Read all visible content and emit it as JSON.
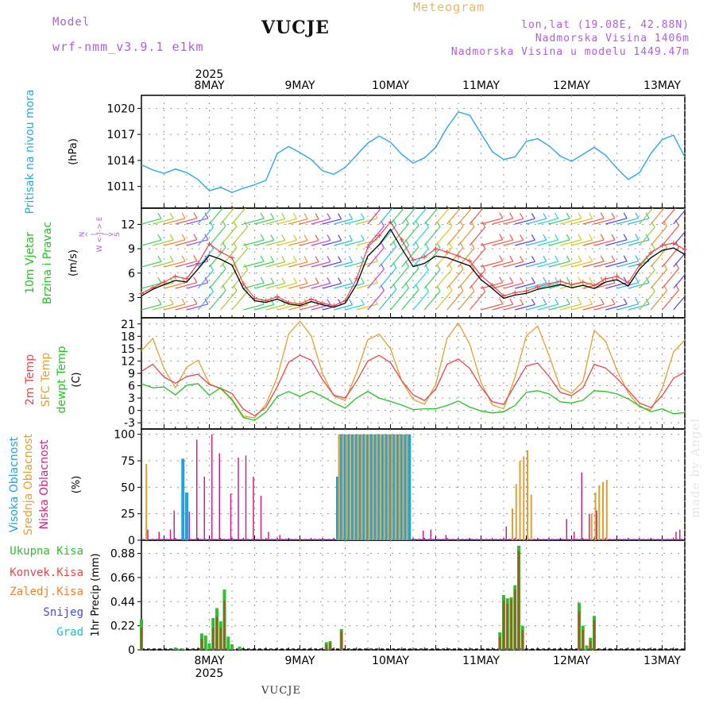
{
  "header": {
    "model_label": "Model",
    "model_name": "wrf-nmm_v3.9.1 e1km",
    "station": "VUCJE",
    "product": "Meteogram",
    "coords": "lon,lat (19.08E, 42.88N)",
    "altitude": "Nadmorska Visina 1406m",
    "model_altitude": "Nadmorska Visina u modelu 1449.47m",
    "footer_station": "VUCJE",
    "credit": "made by Angel"
  },
  "colors": {
    "pressure": "#29a8e0",
    "wind_speed": "#000000",
    "wind_gust": "#e8454a",
    "temp_2m": "#e8454a",
    "temp_sfc": "#e0a030",
    "dewpoint": "#22c322",
    "cloud_high": "#1fa3e0",
    "cloud_mid": "#e0a030",
    "cloud_low": "#d0208a",
    "precip_total": "#2fbe2f",
    "precip_conv": "#e8454a",
    "precip_frozen": "#f08030",
    "precip_snow": "#4848e0",
    "precip_hail": "#20c0c0"
  },
  "time_axis": {
    "year": "2025",
    "day_labels": [
      "8MAY",
      "9MAY",
      "10MAY",
      "11MAY",
      "12MAY",
      "13MAY"
    ],
    "start_hour": -6,
    "end_hour": 138,
    "hour_step": 3
  },
  "chart_data": [
    {
      "type": "line",
      "panel": "pressure",
      "ylabel_lines": [
        "Pritisak na nivou mora"
      ],
      "unit": "(hPa)",
      "yticks": [
        1011,
        1014,
        1017,
        1020
      ],
      "ylim": [
        1008.5,
        1021.5
      ],
      "grid": true,
      "x_hours": [
        -6,
        -3,
        0,
        3,
        6,
        9,
        12,
        15,
        18,
        21,
        24,
        27,
        30,
        33,
        36,
        39,
        42,
        45,
        48,
        51,
        54,
        57,
        60,
        63,
        66,
        69,
        72,
        75,
        78,
        81,
        84,
        87,
        90,
        93,
        96,
        99,
        102,
        105,
        108,
        111,
        114,
        117,
        120,
        123,
        126,
        129,
        132,
        135,
        138
      ],
      "series": [
        {
          "name": "",
          "values": [
            1013.5,
            1012.9,
            1012.5,
            1013.0,
            1012.6,
            1011.8,
            1010.5,
            1010.9,
            1010.3,
            1010.8,
            1011.2,
            1011.7,
            1014.8,
            1015.6,
            1014.9,
            1014.1,
            1012.8,
            1012.4,
            1013.2,
            1014.6,
            1016.0,
            1016.8,
            1016.1,
            1014.7,
            1013.7,
            1014.3,
            1015.5,
            1017.8,
            1019.6,
            1019.2,
            1017.1,
            1015.0,
            1014.1,
            1014.4,
            1016.2,
            1016.5,
            1015.7,
            1014.5,
            1013.9,
            1014.7,
            1015.5,
            1014.6,
            1013.1,
            1011.8,
            1012.6,
            1014.8,
            1016.4,
            1016.9,
            1014.4
          ]
        }
      ]
    },
    {
      "type": "line",
      "panel": "wind",
      "ylabel_lines": [
        "10m Vjetar",
        "Brzina i Pravac"
      ],
      "unit": "(m/s)",
      "compass_lines": [
        "N",
        "^",
        "|",
        "W <-|-> E",
        "|",
        "v",
        "S"
      ],
      "yticks": [
        3,
        6,
        9,
        12
      ],
      "ylim": [
        0.5,
        14
      ],
      "grid": true,
      "x_hours": [
        -6,
        -3,
        0,
        3,
        6,
        9,
        12,
        15,
        18,
        21,
        24,
        27,
        30,
        33,
        36,
        39,
        42,
        45,
        48,
        51,
        54,
        57,
        60,
        63,
        66,
        69,
        72,
        75,
        78,
        81,
        84,
        87,
        90,
        93,
        96,
        99,
        102,
        105,
        108,
        111,
        114,
        117,
        120,
        123,
        126,
        129,
        132,
        135,
        138
      ],
      "series": [
        {
          "name": "",
          "values": [
            3.2,
            4.0,
            4.6,
            5.1,
            4.9,
            6.5,
            8.2,
            7.7,
            7.0,
            4.1,
            2.6,
            2.4,
            2.8,
            2.2,
            2.0,
            2.5,
            2.1,
            1.8,
            2.3,
            4.6,
            8.1,
            9.5,
            11.4,
            9.0,
            6.8,
            7.2,
            8.1,
            7.9,
            7.4,
            6.9,
            5.2,
            4.1,
            2.9,
            3.3,
            3.5,
            4.0,
            4.3,
            4.6,
            4.2,
            4.5,
            4.1,
            4.9,
            5.2,
            4.4,
            6.5,
            7.9,
            8.8,
            9.1,
            8.3
          ]
        },
        {
          "name": "",
          "values": [
            3.5,
            4.2,
            4.9,
            5.6,
            5.3,
            7.2,
            9.6,
            8.6,
            7.9,
            4.7,
            2.9,
            2.6,
            3.1,
            2.4,
            2.2,
            2.8,
            2.3,
            2.0,
            2.6,
            5.3,
            9.2,
            10.6,
            12.3,
            10.1,
            7.6,
            8.0,
            9.0,
            8.6,
            8.1,
            7.5,
            5.7,
            4.5,
            3.2,
            3.6,
            3.8,
            4.3,
            4.7,
            5.0,
            4.6,
            4.9,
            4.5,
            5.3,
            5.6,
            4.8,
            7.0,
            8.5,
            9.4,
            9.7,
            8.9
          ]
        }
      ]
    },
    {
      "type": "line",
      "panel": "temperature",
      "ylabel_lines": [
        "2m Temp",
        "SFC Temp",
        "dewpt Temp"
      ],
      "unit": "(C)",
      "yticks": [
        -3,
        0,
        3,
        6,
        9,
        12,
        15,
        18,
        21
      ],
      "ylim": [
        -4.5,
        22.5
      ],
      "grid": true,
      "x_hours": [
        -6,
        -3,
        0,
        3,
        6,
        9,
        12,
        15,
        18,
        21,
        24,
        27,
        30,
        33,
        36,
        39,
        42,
        45,
        48,
        51,
        54,
        57,
        60,
        63,
        66,
        69,
        72,
        75,
        78,
        81,
        84,
        87,
        90,
        93,
        96,
        99,
        102,
        105,
        108,
        111,
        114,
        117,
        120,
        123,
        126,
        129,
        132,
        135,
        138
      ],
      "series": [
        {
          "name": "",
          "values": [
            9.5,
            11.2,
            8.1,
            6.6,
            8.2,
            8.8,
            6.3,
            5.4,
            4.1,
            0.3,
            -1.3,
            0.8,
            5.8,
            11.7,
            13.4,
            12.2,
            7.5,
            3.7,
            3.0,
            7.1,
            12.0,
            13.4,
            11.6,
            7.2,
            3.8,
            2.4,
            5.2,
            11.2,
            12.5,
            10.2,
            5.7,
            2.1,
            1.5,
            6.2,
            10.8,
            11.5,
            8.3,
            4.4,
            3.6,
            5.5,
            11.2,
            10.3,
            7.8,
            4.9,
            1.8,
            0.7,
            3.6,
            7.8,
            9.3
          ]
        },
        {
          "name": "",
          "values": [
            14.5,
            17.5,
            10.2,
            5.5,
            10.5,
            12.2,
            6.5,
            5.2,
            2.8,
            -1.4,
            -1.8,
            1.5,
            8.1,
            18.5,
            21.7,
            18.1,
            8.9,
            3.5,
            2.4,
            9.1,
            17.2,
            18.5,
            15.0,
            7.1,
            2.7,
            1.5,
            6.3,
            17.5,
            21.2,
            16.1,
            6.8,
            1.3,
            0.4,
            8.1,
            18.1,
            20.5,
            13.4,
            5.5,
            4.2,
            7.1,
            19.5,
            16.8,
            9.8,
            4.3,
            0.8,
            0.2,
            5.3,
            14.2,
            17.1
          ]
        },
        {
          "name": "",
          "values": [
            6.5,
            5.5,
            5.7,
            3.8,
            6.1,
            6.5,
            3.7,
            5.5,
            2.5,
            -1.7,
            -2.4,
            -0.4,
            3.4,
            4.6,
            3.4,
            4.7,
            3.4,
            1.8,
            0.6,
            3.0,
            4.6,
            3.0,
            2.2,
            1.3,
            0.2,
            0.4,
            0.4,
            1.2,
            2.3,
            0.8,
            -0.1,
            -0.6,
            -0.3,
            1.2,
            4.4,
            4.8,
            4.0,
            2.1,
            1.8,
            2.5,
            4.8,
            4.6,
            4.0,
            2.8,
            1.1,
            -0.3,
            0.4,
            -0.8,
            -0.5
          ]
        }
      ]
    },
    {
      "type": "bar",
      "panel": "clouds",
      "ylabel_lines": [
        "Visoka Oblacnost",
        "Srednja Oblacnost",
        "Niska Oblacnost"
      ],
      "unit": "(%)",
      "yticks": [
        0,
        25,
        50,
        75,
        100
      ],
      "ylim": [
        0,
        105
      ],
      "grid": true,
      "series": [
        {
          "name": "",
          "hours": [
            5,
            6,
            46,
            47,
            48,
            49,
            50,
            51,
            52,
            53,
            54,
            55,
            56,
            57,
            58,
            59,
            60,
            61,
            62,
            63,
            64,
            65
          ],
          "values": [
            77,
            45,
            60,
            100,
            100,
            100,
            100,
            100,
            100,
            100,
            100,
            100,
            100,
            100,
            100,
            100,
            100,
            100,
            100,
            100,
            100,
            100
          ]
        },
        {
          "name": "",
          "hours": [
            -5,
            46,
            47,
            48,
            49,
            50,
            51,
            52,
            53,
            54,
            55,
            56,
            57,
            58,
            59,
            60,
            61,
            62,
            63,
            64,
            92,
            93,
            94,
            95,
            96,
            97,
            113,
            114,
            115,
            116,
            117
          ],
          "values": [
            72,
            100,
            100,
            100,
            100,
            100,
            100,
            100,
            100,
            100,
            100,
            100,
            100,
            100,
            100,
            100,
            100,
            100,
            100,
            100,
            30,
            53,
            75,
            79,
            85,
            43,
            25,
            45,
            52,
            55,
            57
          ]
        },
        {
          "name": "",
          "hours": [
            -4,
            -1,
            2,
            3,
            7,
            9,
            11,
            13,
            15,
            18,
            20,
            22,
            24,
            26,
            28,
            31,
            69,
            71,
            75,
            91,
            107,
            109,
            111,
            113,
            115,
            136,
            137
          ],
          "values": [
            10,
            8,
            10,
            28,
            27,
            95,
            60,
            100,
            82,
            44,
            78,
            80,
            60,
            42,
            8,
            5,
            9,
            10,
            5,
            13,
            20,
            8,
            64,
            25,
            28,
            8,
            10
          ]
        }
      ]
    },
    {
      "type": "bar",
      "panel": "precipitation",
      "legend": [
        "Ukupna Kisa",
        "Konvek.Kisa",
        "Zaledj.Kisa",
        "Snijeg",
        "Grad"
      ],
      "unit": "1hr Precip (mm)",
      "yticks": [
        0,
        0.22,
        0.44,
        0.66,
        0.88
      ],
      "ylim": [
        0,
        1.0
      ],
      "grid": true,
      "series": [
        {
          "name": "Ukupna Kisa",
          "hours": [
            -6,
            3,
            4,
            5,
            10,
            11,
            12,
            13,
            14,
            15,
            16,
            17,
            18,
            20,
            43,
            44,
            47,
            89,
            90,
            91,
            92,
            93,
            94,
            95,
            96,
            110,
            111,
            112,
            113,
            114
          ],
          "values": [
            0.28,
            0.02,
            0.01,
            0.01,
            0.15,
            0.13,
            0.06,
            0.29,
            0.38,
            0.26,
            0.55,
            0.12,
            0.05,
            0.03,
            0.07,
            0.08,
            0.19,
            0.16,
            0.5,
            0.47,
            0.48,
            0.59,
            0.95,
            0.22,
            0.0,
            0.43,
            0.22,
            0.04,
            0.11,
            0.31
          ]
        },
        {
          "name": "Konvek.Kisa",
          "hours": [
            -6,
            10,
            13,
            14,
            15,
            16,
            43,
            44,
            47,
            89,
            90,
            91,
            92,
            93,
            94,
            95,
            110,
            111,
            113,
            114
          ],
          "values": [
            0.2,
            0.1,
            0.2,
            0.3,
            0.2,
            0.45,
            0.05,
            0.06,
            0.17,
            0.12,
            0.45,
            0.42,
            0.46,
            0.55,
            0.9,
            0.18,
            0.35,
            0.18,
            0.08,
            0.27
          ]
        }
      ]
    }
  ]
}
